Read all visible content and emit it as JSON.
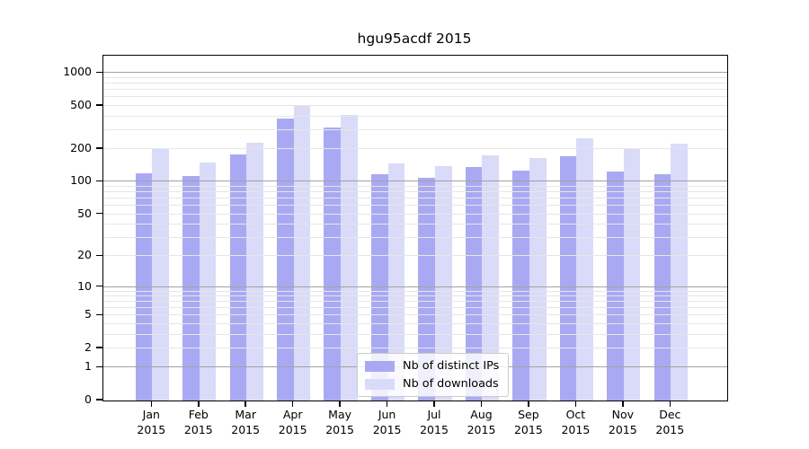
{
  "chart_data": {
    "type": "bar",
    "title": "hgu95acdf 2015",
    "categories": [
      "Jan",
      "Feb",
      "Mar",
      "Apr",
      "May",
      "Jun",
      "Jul",
      "Aug",
      "Sep",
      "Oct",
      "Nov",
      "Dec"
    ],
    "category_year": "2015",
    "series": [
      {
        "name": "Nb of distinct IPs",
        "color": "#a9a9f3",
        "values": [
          120,
          113,
          178,
          380,
          316,
          118,
          109,
          136,
          126,
          172,
          124,
          117
        ]
      },
      {
        "name": "Nb of downloads",
        "color": "#dadaf9",
        "values": [
          202,
          152,
          228,
          512,
          414,
          148,
          141,
          176,
          165,
          250,
          200,
          223
        ]
      }
    ],
    "yticks": [
      0,
      1,
      2,
      5,
      10,
      20,
      50,
      100,
      200,
      500,
      1000
    ],
    "scale": "log10(1+x)",
    "ylim": [
      0,
      1445
    ],
    "grid": true,
    "legend_position": "lower-center",
    "xlabel": "",
    "ylabel": ""
  },
  "colors": {
    "background": "#ffffff",
    "axis": "#000000",
    "major_grid": "#a2a2a2",
    "minor_grid": "#e6e6e6",
    "legend_border": "#cccccc",
    "text": "#000000"
  }
}
